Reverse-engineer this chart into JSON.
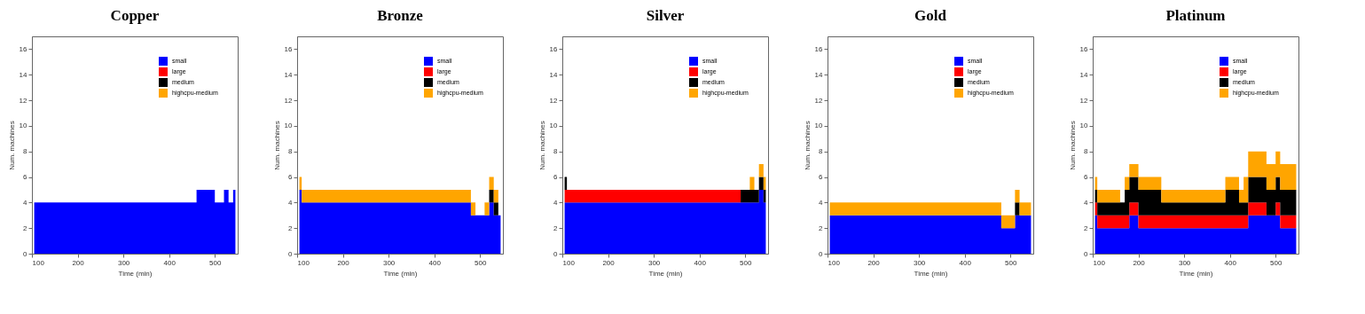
{
  "chart_data": [
    {
      "type": "area",
      "stacked": true,
      "title": "Copper",
      "xlabel": "Time (min)",
      "ylabel": "Num. machines",
      "x": [
        105,
        115,
        125,
        135,
        145,
        155,
        165,
        175,
        185,
        195,
        205,
        215,
        225,
        235,
        245,
        255,
        265,
        275,
        285,
        295,
        305,
        315,
        325,
        335,
        345,
        355,
        365,
        375,
        385,
        395,
        405,
        415,
        425,
        435,
        445,
        455,
        465,
        475,
        485,
        495,
        505,
        515,
        525,
        535,
        545
      ],
      "xlim": [
        100,
        550
      ],
      "xticks": [
        100,
        200,
        300,
        400,
        500
      ],
      "ylim": [
        0,
        17
      ],
      "yticks": [
        0,
        2,
        4,
        6,
        8,
        10,
        12,
        14,
        16
      ],
      "legend": "top right",
      "series": [
        {
          "name": "small",
          "color": "#0000ff",
          "values": [
            4,
            4,
            4,
            4,
            4,
            4,
            4,
            4,
            4,
            4,
            4,
            4,
            4,
            4,
            4,
            4,
            4,
            4,
            4,
            4,
            4,
            4,
            4,
            4,
            4,
            4,
            4,
            4,
            4,
            4,
            4,
            4,
            4,
            4,
            4,
            4,
            5,
            5,
            5,
            5,
            4,
            4,
            5,
            4,
            5
          ]
        },
        {
          "name": "large",
          "color": "#ff0000",
          "values": [
            null,
            null,
            null,
            null,
            null,
            null,
            null,
            null,
            null,
            null,
            null,
            null,
            null,
            null,
            null,
            null,
            null,
            null,
            null,
            null,
            null,
            null,
            null,
            null,
            null,
            null,
            null,
            null,
            null,
            null,
            null,
            null,
            null,
            null,
            null,
            null,
            null,
            null,
            null,
            null,
            null,
            null,
            null,
            null,
            null
          ]
        },
        {
          "name": "medium",
          "color": "#000000",
          "values": [
            null,
            null,
            null,
            null,
            null,
            null,
            null,
            null,
            null,
            null,
            null,
            null,
            null,
            null,
            null,
            null,
            null,
            null,
            null,
            null,
            null,
            null,
            null,
            null,
            null,
            null,
            null,
            null,
            null,
            null,
            null,
            null,
            null,
            null,
            null,
            null,
            null,
            null,
            null,
            null,
            null,
            null,
            null,
            null,
            null
          ]
        },
        {
          "name": "highcpu-medium",
          "color": "#ffa500",
          "values": [
            null,
            null,
            null,
            null,
            null,
            null,
            null,
            null,
            null,
            null,
            null,
            null,
            null,
            null,
            null,
            null,
            null,
            null,
            null,
            null,
            null,
            null,
            null,
            null,
            null,
            null,
            null,
            null,
            null,
            null,
            null,
            null,
            null,
            null,
            null,
            null,
            null,
            null,
            null,
            null,
            null,
            null,
            null,
            null,
            null
          ]
        }
      ]
    },
    {
      "type": "area",
      "stacked": true,
      "title": "Bronze",
      "xlabel": "Time (min)",
      "ylabel": "Num. machines",
      "x": [
        105,
        115,
        125,
        135,
        145,
        155,
        165,
        175,
        185,
        195,
        205,
        215,
        225,
        235,
        245,
        255,
        265,
        275,
        285,
        295,
        305,
        315,
        325,
        335,
        345,
        355,
        365,
        375,
        385,
        395,
        405,
        415,
        425,
        435,
        445,
        455,
        465,
        475,
        485,
        495,
        505,
        515,
        525,
        535,
        545
      ],
      "xlim": [
        100,
        550
      ],
      "xticks": [
        100,
        200,
        300,
        400,
        500
      ],
      "ylim": [
        0,
        17
      ],
      "yticks": [
        0,
        2,
        4,
        6,
        8,
        10,
        12,
        14,
        16
      ],
      "legend": "top right",
      "series": [
        {
          "name": "small",
          "color": "#0000ff",
          "values": [
            5,
            4,
            4,
            4,
            4,
            4,
            4,
            4,
            4,
            4,
            4,
            4,
            4,
            4,
            4,
            4,
            4,
            4,
            4,
            4,
            4,
            4,
            4,
            4,
            4,
            4,
            4,
            4,
            4,
            4,
            4,
            4,
            4,
            4,
            4,
            4,
            4,
            4,
            3,
            3,
            3,
            3,
            4,
            3,
            3
          ]
        },
        {
          "name": "large",
          "color": "#ff0000",
          "values": [
            null,
            null,
            null,
            null,
            null,
            null,
            null,
            null,
            null,
            null,
            null,
            null,
            null,
            null,
            null,
            null,
            null,
            null,
            null,
            null,
            null,
            null,
            null,
            null,
            null,
            null,
            null,
            null,
            null,
            null,
            null,
            null,
            null,
            null,
            null,
            null,
            null,
            null,
            null,
            null,
            null,
            null,
            null,
            null,
            null
          ]
        },
        {
          "name": "medium",
          "color": "#000000",
          "values": [
            0,
            0,
            0,
            0,
            0,
            0,
            0,
            0,
            0,
            0,
            0,
            0,
            0,
            0,
            0,
            0,
            0,
            0,
            0,
            0,
            0,
            0,
            0,
            0,
            0,
            0,
            0,
            0,
            0,
            0,
            0,
            0,
            0,
            0,
            0,
            0,
            0,
            0,
            0,
            0,
            0,
            0,
            1,
            1,
            0
          ]
        },
        {
          "name": "highcpu-medium",
          "color": "#ffa500",
          "values": [
            1,
            1,
            1,
            1,
            1,
            1,
            1,
            1,
            1,
            1,
            1,
            1,
            1,
            1,
            1,
            1,
            1,
            1,
            1,
            1,
            1,
            1,
            1,
            1,
            1,
            1,
            1,
            1,
            1,
            1,
            1,
            1,
            1,
            1,
            1,
            1,
            1,
            1,
            1,
            0,
            0,
            1,
            1,
            1,
            0
          ]
        }
      ]
    },
    {
      "type": "area",
      "stacked": true,
      "title": "Silver",
      "xlabel": "Time (min)",
      "ylabel": "Num. machines",
      "x": [
        105,
        115,
        125,
        135,
        145,
        155,
        165,
        175,
        185,
        195,
        205,
        215,
        225,
        235,
        245,
        255,
        265,
        275,
        285,
        295,
        305,
        315,
        325,
        335,
        345,
        355,
        365,
        375,
        385,
        395,
        405,
        415,
        425,
        435,
        445,
        455,
        465,
        475,
        485,
        495,
        505,
        515,
        525,
        535,
        545
      ],
      "xlim": [
        100,
        550
      ],
      "xticks": [
        100,
        200,
        300,
        400,
        500
      ],
      "ylim": [
        0,
        17
      ],
      "yticks": [
        0,
        2,
        4,
        6,
        8,
        10,
        12,
        14,
        16
      ],
      "legend": "top right",
      "series": [
        {
          "name": "small",
          "color": "#0000ff",
          "values": [
            4,
            4,
            4,
            4,
            4,
            4,
            4,
            4,
            4,
            4,
            4,
            4,
            4,
            4,
            4,
            4,
            4,
            4,
            4,
            4,
            4,
            4,
            4,
            4,
            4,
            4,
            4,
            4,
            4,
            4,
            4,
            4,
            4,
            4,
            4,
            4,
            4,
            4,
            4,
            4,
            4,
            4,
            4,
            5,
            4
          ]
        },
        {
          "name": "large",
          "color": "#ff0000",
          "values": [
            1,
            1,
            1,
            1,
            1,
            1,
            1,
            1,
            1,
            1,
            1,
            1,
            1,
            1,
            1,
            1,
            1,
            1,
            1,
            1,
            1,
            1,
            1,
            1,
            1,
            1,
            1,
            1,
            1,
            1,
            1,
            1,
            1,
            1,
            1,
            1,
            1,
            1,
            1,
            0,
            0,
            0,
            0,
            0,
            0
          ]
        },
        {
          "name": "medium",
          "color": "#000000",
          "values": [
            1,
            0,
            0,
            0,
            0,
            0,
            0,
            0,
            0,
            0,
            0,
            0,
            0,
            0,
            0,
            0,
            0,
            0,
            0,
            0,
            0,
            0,
            0,
            0,
            0,
            0,
            0,
            0,
            0,
            0,
            0,
            0,
            0,
            0,
            0,
            0,
            0,
            0,
            0,
            1,
            1,
            1,
            1,
            1,
            1
          ]
        },
        {
          "name": "highcpu-medium",
          "color": "#ffa500",
          "values": [
            0,
            0,
            0,
            0,
            0,
            0,
            0,
            0,
            0,
            0,
            0,
            0,
            0,
            0,
            0,
            0,
            0,
            0,
            0,
            0,
            0,
            0,
            0,
            0,
            0,
            0,
            0,
            0,
            0,
            0,
            0,
            0,
            0,
            0,
            0,
            0,
            0,
            0,
            0,
            0,
            0,
            1,
            0,
            1,
            1
          ]
        }
      ]
    },
    {
      "type": "area",
      "stacked": true,
      "title": "Gold",
      "xlabel": "Time (min)",
      "ylabel": "Num. machines",
      "x": [
        105,
        115,
        125,
        135,
        145,
        155,
        165,
        175,
        185,
        195,
        205,
        215,
        225,
        235,
        245,
        255,
        265,
        275,
        285,
        295,
        305,
        315,
        325,
        335,
        345,
        355,
        365,
        375,
        385,
        395,
        405,
        415,
        425,
        435,
        445,
        455,
        465,
        475,
        485,
        495,
        505,
        515,
        525,
        535,
        545
      ],
      "xlim": [
        100,
        550
      ],
      "xticks": [
        100,
        200,
        300,
        400,
        500
      ],
      "ylim": [
        0,
        17
      ],
      "yticks": [
        0,
        2,
        4,
        6,
        8,
        10,
        12,
        14,
        16
      ],
      "legend": "top right",
      "series": [
        {
          "name": "small",
          "color": "#0000ff",
          "values": [
            3,
            3,
            3,
            3,
            3,
            3,
            3,
            3,
            3,
            3,
            3,
            3,
            3,
            3,
            3,
            3,
            3,
            3,
            3,
            3,
            3,
            3,
            3,
            3,
            3,
            3,
            3,
            3,
            3,
            3,
            3,
            3,
            3,
            3,
            3,
            3,
            3,
            3,
            2,
            2,
            2,
            3,
            3,
            3,
            3
          ]
        },
        {
          "name": "large",
          "color": "#ff0000",
          "values": [
            null,
            null,
            null,
            null,
            null,
            null,
            null,
            null,
            null,
            null,
            null,
            null,
            null,
            null,
            null,
            null,
            null,
            null,
            null,
            null,
            null,
            null,
            null,
            null,
            null,
            null,
            null,
            null,
            null,
            null,
            null,
            null,
            null,
            null,
            null,
            null,
            null,
            null,
            null,
            null,
            null,
            null,
            null,
            null,
            null
          ]
        },
        {
          "name": "medium",
          "color": "#000000",
          "values": [
            0,
            0,
            0,
            0,
            0,
            0,
            0,
            0,
            0,
            0,
            0,
            0,
            0,
            0,
            0,
            0,
            0,
            0,
            0,
            0,
            0,
            0,
            0,
            0,
            0,
            0,
            0,
            0,
            0,
            0,
            0,
            0,
            0,
            0,
            0,
            0,
            0,
            0,
            0,
            0,
            0,
            1,
            0,
            0,
            0
          ]
        },
        {
          "name": "highcpu-medium",
          "color": "#ffa500",
          "values": [
            1,
            1,
            1,
            1,
            1,
            1,
            1,
            1,
            1,
            1,
            1,
            1,
            1,
            1,
            1,
            1,
            1,
            1,
            1,
            1,
            1,
            1,
            1,
            1,
            1,
            1,
            1,
            1,
            1,
            1,
            1,
            1,
            1,
            1,
            1,
            1,
            1,
            1,
            1,
            1,
            1,
            1,
            1,
            1,
            1
          ]
        }
      ]
    },
    {
      "type": "area",
      "stacked": true,
      "title": "Platinum",
      "xlabel": "Time (min)",
      "ylabel": "Num. machines",
      "x": [
        105,
        115,
        125,
        135,
        145,
        155,
        165,
        175,
        185,
        195,
        205,
        215,
        225,
        235,
        245,
        255,
        265,
        275,
        285,
        295,
        305,
        315,
        325,
        335,
        345,
        355,
        365,
        375,
        385,
        395,
        405,
        415,
        425,
        435,
        445,
        455,
        465,
        475,
        485,
        495,
        505,
        515,
        525,
        535,
        545
      ],
      "xlim": [
        100,
        550
      ],
      "xticks": [
        100,
        200,
        300,
        400,
        500
      ],
      "ylim": [
        0,
        17
      ],
      "yticks": [
        0,
        2,
        4,
        6,
        8,
        10,
        12,
        14,
        16
      ],
      "legend": "top right",
      "series": [
        {
          "name": "small",
          "color": "#0000ff",
          "values": [
            3,
            2,
            2,
            2,
            2,
            2,
            2,
            2,
            3,
            3,
            2,
            2,
            2,
            2,
            2,
            2,
            2,
            2,
            2,
            2,
            2,
            2,
            2,
            2,
            2,
            2,
            2,
            2,
            2,
            2,
            2,
            2,
            2,
            2,
            3,
            3,
            3,
            3,
            3,
            3,
            3,
            2,
            2,
            2,
            2
          ]
        },
        {
          "name": "large",
          "color": "#ff0000",
          "values": [
            1,
            1,
            1,
            1,
            1,
            1,
            1,
            1,
            1,
            1,
            1,
            1,
            1,
            1,
            1,
            1,
            1,
            1,
            1,
            1,
            1,
            1,
            1,
            1,
            1,
            1,
            1,
            1,
            1,
            1,
            1,
            1,
            1,
            1,
            1,
            1,
            1,
            1,
            0,
            0,
            1,
            1,
            1,
            1,
            1
          ]
        },
        {
          "name": "medium",
          "color": "#000000",
          "values": [
            1,
            1,
            1,
            1,
            1,
            1,
            1,
            2,
            2,
            2,
            2,
            2,
            2,
            2,
            2,
            1,
            1,
            1,
            1,
            1,
            1,
            1,
            1,
            1,
            1,
            1,
            1,
            1,
            1,
            2,
            2,
            2,
            1,
            1,
            2,
            2,
            2,
            2,
            2,
            2,
            2,
            2,
            2,
            2,
            2
          ]
        },
        {
          "name": "highcpu-medium",
          "color": "#ffa500",
          "values": [
            1,
            1,
            1,
            1,
            1,
            1,
            0,
            1,
            1,
            1,
            1,
            1,
            1,
            1,
            1,
            1,
            1,
            1,
            1,
            1,
            1,
            1,
            1,
            1,
            1,
            1,
            1,
            1,
            1,
            1,
            1,
            1,
            1,
            2,
            2,
            2,
            2,
            2,
            2,
            2,
            2,
            2,
            2,
            2,
            2
          ]
        }
      ]
    }
  ]
}
